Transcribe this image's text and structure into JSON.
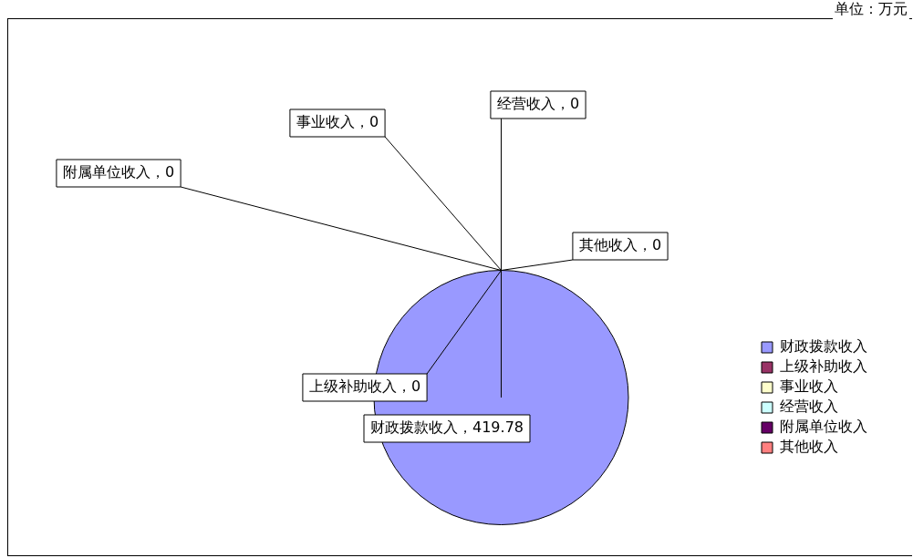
{
  "chart_data": {
    "type": "pie",
    "categories": [
      "财政拨款收入",
      "上级补助收入",
      "事业收入",
      "经营收入",
      "附属单位收入",
      "其他收入"
    ],
    "values": [
      419.78,
      0,
      0,
      0,
      0,
      0
    ],
    "colors": [
      "#9999ff",
      "#993366",
      "#ffffcc",
      "#ccffff",
      "#660066",
      "#ff8080"
    ],
    "value_labels": [
      "财政拨款收入，419.78",
      "上级补助收入，0",
      "事业收入，0",
      "经营收入，0",
      "附属单位收入，0",
      "其他收入，0"
    ],
    "legend": "right",
    "annotations": [
      "单位：万元"
    ]
  }
}
